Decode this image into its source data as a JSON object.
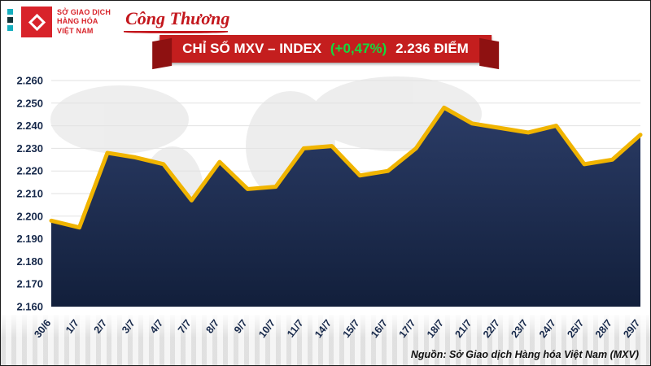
{
  "header": {
    "mxv_logo": {
      "line1": "SỞ GIAO DỊCH",
      "line2": "HÀNG HÓA",
      "line3": "VIỆT NAM"
    },
    "congthuong_logo": "Công Thương"
  },
  "banner": {
    "title": "CHỈ SỐ MXV – INDEX",
    "change": "(+0,47%)",
    "value": "2.236 ĐIỂM"
  },
  "chart_data": {
    "type": "area",
    "title": "CHỈ SỐ MXV – INDEX (+0,47%) 2.236 ĐIỂM",
    "categories": [
      "30/6",
      "1/7",
      "2/7",
      "3/7",
      "4/7",
      "7/7",
      "8/7",
      "9/7",
      "10/7",
      "11/7",
      "14/7",
      "15/7",
      "16/7",
      "17/7",
      "18/7",
      "21/7",
      "22/7",
      "23/7",
      "24/7",
      "25/7",
      "28/7",
      "29/7"
    ],
    "values": [
      2198,
      2195,
      2228,
      2226,
      2223,
      2207,
      2224,
      2212,
      2213,
      2230,
      2231,
      2218,
      2220,
      2230,
      2248,
      2241,
      2239,
      2237,
      2240,
      2223,
      2225,
      2236
    ],
    "ylim": [
      2160,
      2260
    ],
    "y_ticks": [
      "2.260",
      "2.250",
      "2.240",
      "2.230",
      "2.220",
      "2.210",
      "2.200",
      "2.190",
      "2.180",
      "2.170",
      "2.160"
    ],
    "grid": true,
    "legend": "none",
    "line_color": "#f0b400",
    "fill_top": "#2b3c66",
    "fill_bottom": "#121f3b"
  },
  "source": "Nguồn: Sở Giao dịch Hàng hóa Việt Nam (MXV)",
  "colors": {
    "banner_red": "#c41e1e",
    "change_green": "#16d83e",
    "logo_red": "#d8232a",
    "axis_text": "#16284a"
  }
}
